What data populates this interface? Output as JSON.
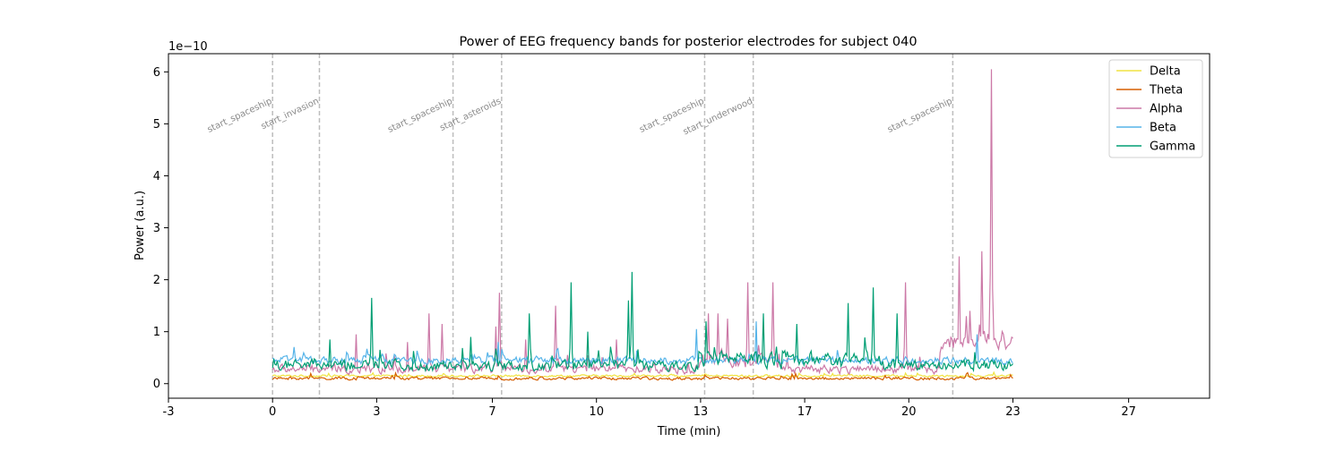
{
  "chart_data": {
    "type": "line",
    "title": "Power of EEG frequency bands for posterior electrodes for subject 040",
    "xlabel": "Time (min)",
    "ylabel": "Power (a.u.)",
    "y_scale_label": "1e−10",
    "xlim": [
      -3,
      27
    ],
    "ylim": [
      -0.28,
      6.35
    ],
    "xticks": [
      {
        "value": -3,
        "label": "-3"
      },
      {
        "value": 0,
        "label": "0"
      },
      {
        "value": 3,
        "label": "3"
      },
      {
        "value": 6.333,
        "label": "7"
      },
      {
        "value": 9.333,
        "label": "10"
      },
      {
        "value": 12.333,
        "label": "13"
      },
      {
        "value": 15.333,
        "label": "17"
      },
      {
        "value": 18.333,
        "label": "20"
      },
      {
        "value": 21.333,
        "label": "23"
      },
      {
        "value": 24.667,
        "label": "27"
      }
    ],
    "yticks": [
      0,
      1,
      2,
      3,
      4,
      5,
      6
    ],
    "grid": false,
    "legend_position": "top-right",
    "series": [
      {
        "name": "Delta",
        "color": "#f0e442",
        "base": 0.15,
        "noise": 0.03
      },
      {
        "name": "Theta",
        "color": "#d55e00",
        "base": 0.1,
        "noise": 0.04
      },
      {
        "name": "Alpha",
        "color": "#cc79a7",
        "base": 0.28,
        "noise": 0.12
      },
      {
        "name": "Beta",
        "color": "#56b4e9",
        "base": 0.45,
        "noise": 0.1
      },
      {
        "name": "Gamma",
        "color": "#009e73",
        "base": 0.35,
        "noise": 0.15
      }
    ],
    "series_x_range": [
      0,
      21.333
    ],
    "peaks": [
      {
        "series": "Alpha",
        "x": 20.7,
        "y": 6.05
      },
      {
        "series": "Alpha",
        "x": 20.85,
        "y": 0.8
      },
      {
        "series": "Alpha",
        "x": 20.45,
        "y": 2.55
      },
      {
        "series": "Alpha",
        "x": 19.8,
        "y": 2.45
      },
      {
        "series": "Alpha",
        "x": 20.1,
        "y": 1.4
      },
      {
        "series": "Alpha",
        "x": 20.0,
        "y": 1.3
      },
      {
        "series": "Alpha",
        "x": 18.25,
        "y": 1.95
      },
      {
        "series": "Alpha",
        "x": 14.4,
        "y": 1.95
      },
      {
        "series": "Alpha",
        "x": 13.7,
        "y": 1.95
      },
      {
        "series": "Alpha",
        "x": 13.1,
        "y": 1.25
      },
      {
        "series": "Alpha",
        "x": 12.55,
        "y": 1.35
      },
      {
        "series": "Alpha",
        "x": 12.85,
        "y": 1.35
      },
      {
        "series": "Alpha",
        "x": 8.15,
        "y": 1.5
      },
      {
        "series": "Alpha",
        "x": 6.55,
        "y": 1.75
      },
      {
        "series": "Alpha",
        "x": 6.45,
        "y": 1.1
      },
      {
        "series": "Alpha",
        "x": 4.5,
        "y": 1.35
      },
      {
        "series": "Alpha",
        "x": 4.9,
        "y": 1.15
      },
      {
        "series": "Alpha",
        "x": 7.3,
        "y": 0.85
      },
      {
        "series": "Alpha",
        "x": 9.9,
        "y": 0.85
      },
      {
        "series": "Alpha",
        "x": 3.9,
        "y": 0.8
      },
      {
        "series": "Alpha",
        "x": 2.4,
        "y": 0.95
      },
      {
        "series": "Gamma",
        "x": 10.35,
        "y": 2.15
      },
      {
        "series": "Gamma",
        "x": 10.25,
        "y": 1.6
      },
      {
        "series": "Gamma",
        "x": 8.6,
        "y": 1.95
      },
      {
        "series": "Gamma",
        "x": 2.85,
        "y": 1.65
      },
      {
        "series": "Gamma",
        "x": 7.4,
        "y": 1.35
      },
      {
        "series": "Gamma",
        "x": 16.6,
        "y": 1.55
      },
      {
        "series": "Gamma",
        "x": 17.3,
        "y": 1.85
      },
      {
        "series": "Gamma",
        "x": 12.5,
        "y": 1.2
      },
      {
        "series": "Gamma",
        "x": 14.15,
        "y": 1.35
      },
      {
        "series": "Gamma",
        "x": 18.0,
        "y": 1.35
      },
      {
        "series": "Gamma",
        "x": 15.1,
        "y": 1.15
      },
      {
        "series": "Gamma",
        "x": 9.1,
        "y": 1.0
      },
      {
        "series": "Gamma",
        "x": 1.65,
        "y": 0.85
      },
      {
        "series": "Gamma",
        "x": 5.7,
        "y": 0.9
      },
      {
        "series": "Beta",
        "x": 12.2,
        "y": 1.05
      },
      {
        "series": "Beta",
        "x": 13.95,
        "y": 1.2
      },
      {
        "series": "Beta",
        "x": 20.3,
        "y": 0.95
      },
      {
        "series": "Beta",
        "x": 6.5,
        "y": 0.8
      }
    ],
    "events": [
      {
        "x": 0.0,
        "label": "start_spaceship"
      },
      {
        "x": 1.35,
        "label": "start_invasion"
      },
      {
        "x": 5.2,
        "label": "start_spaceship"
      },
      {
        "x": 6.6,
        "label": "start_asteroids"
      },
      {
        "x": 12.45,
        "label": "start_spaceship"
      },
      {
        "x": 13.85,
        "label": "start_underwood"
      },
      {
        "x": 19.6,
        "label": "start_spaceship"
      }
    ]
  }
}
